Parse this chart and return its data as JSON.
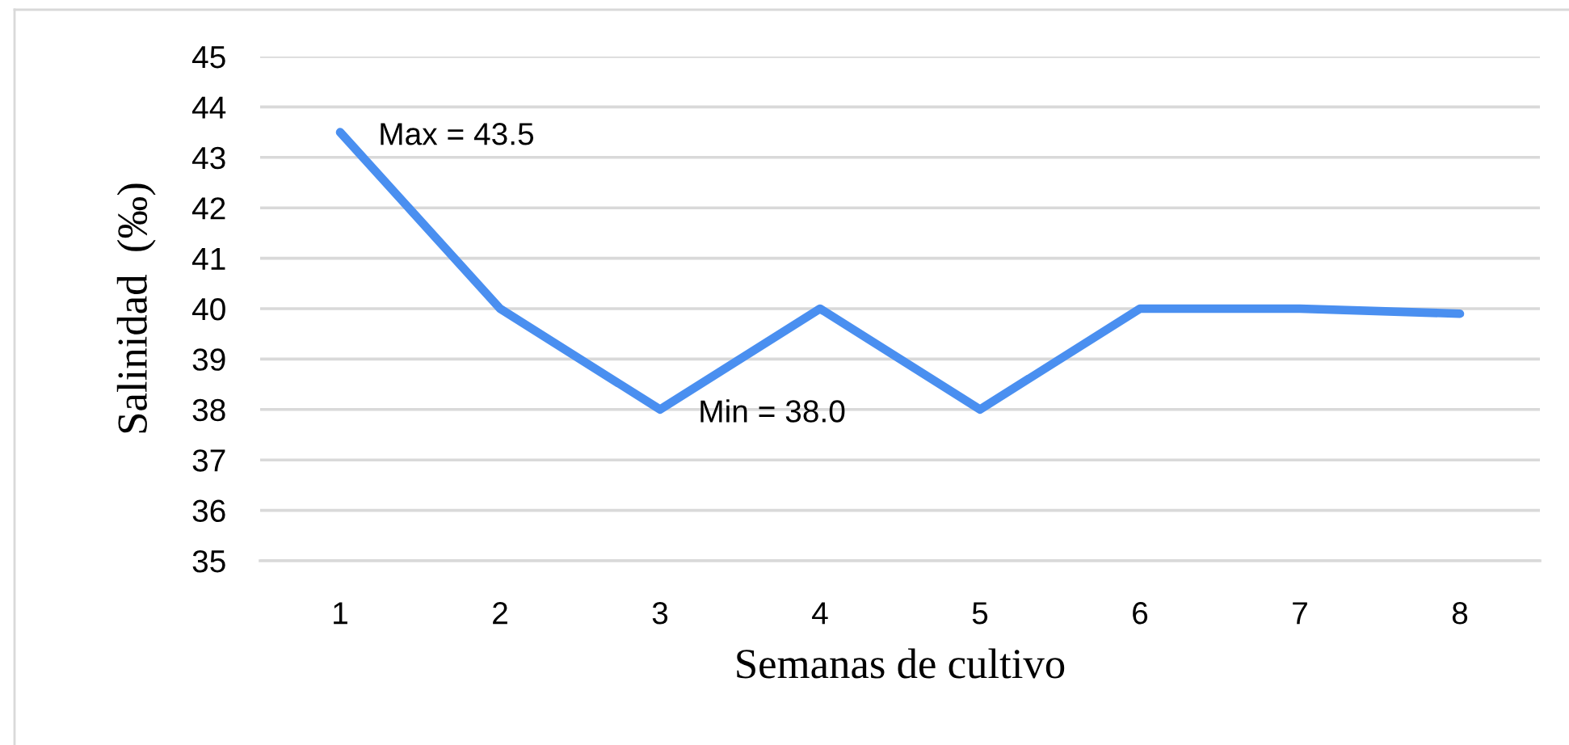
{
  "chart_data": {
    "type": "line",
    "xlabel": "Semanas de cultivo",
    "ylabel": "Salinidad  (‰)",
    "categories": [
      "1",
      "2",
      "3",
      "4",
      "5",
      "6",
      "7",
      "8"
    ],
    "series": [
      {
        "color": "#4a8ff0",
        "values": [
          43.5,
          40,
          38,
          40,
          38,
          40,
          40,
          39.9
        ]
      }
    ],
    "ylim": [
      35,
      45
    ],
    "yticks": [
      35,
      36,
      37,
      38,
      39,
      40,
      41,
      42,
      43,
      44,
      45
    ],
    "grid": "y",
    "marker": "none",
    "line_style": "solid",
    "annotations": [
      {
        "text": "Max = 43.5",
        "x": "1",
        "y": 43.5
      },
      {
        "text": "Min = 38.0",
        "x": "3",
        "y": 38.0
      }
    ]
  }
}
